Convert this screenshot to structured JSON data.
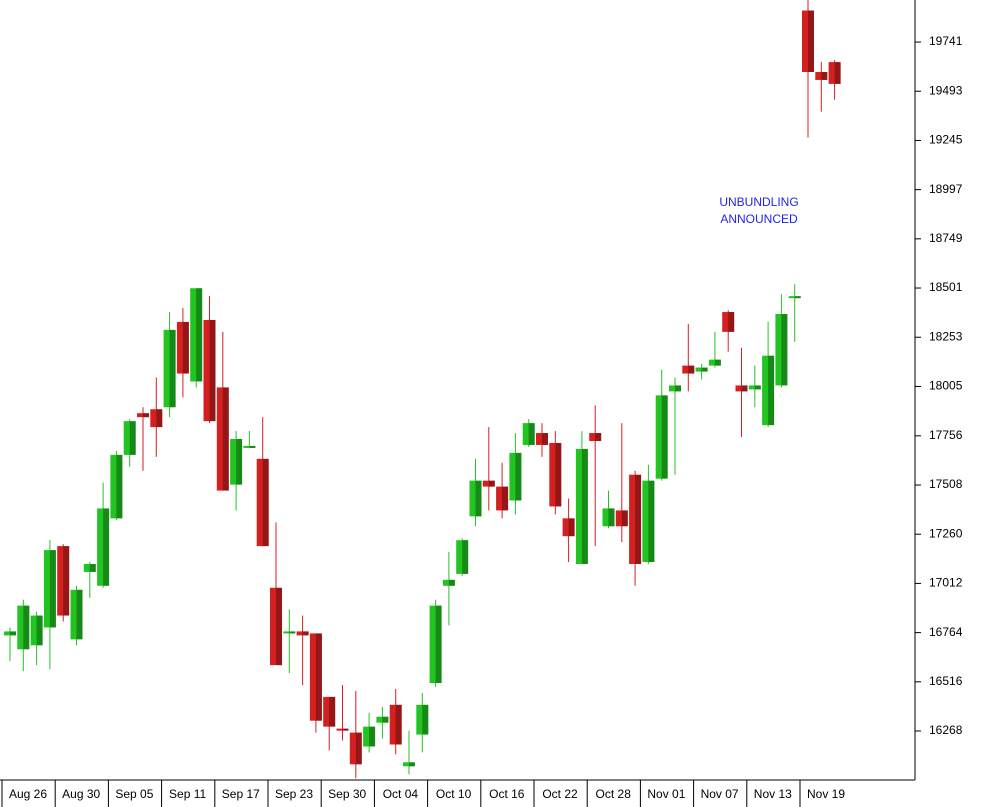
{
  "chart_data": {
    "type": "candlestick",
    "x": [
      null,
      "Aug 26",
      null,
      null,
      null,
      "Aug 30",
      null,
      null,
      null,
      "Sep 05",
      null,
      null,
      null,
      "Sep 11",
      null,
      null,
      null,
      "Sep 17",
      null,
      null,
      null,
      "Sep 23",
      null,
      null,
      null,
      "Sep 30",
      null,
      null,
      null,
      "Oct 04",
      null,
      null,
      null,
      "Oct 10",
      null,
      null,
      null,
      "Oct 16",
      null,
      null,
      null,
      "Oct 22",
      null,
      null,
      null,
      "Oct 28",
      null,
      null,
      null,
      "Nov 01",
      null,
      null,
      null,
      "Nov 07",
      null,
      null,
      null,
      "Nov 13",
      null,
      null,
      null,
      "Nov 19",
      null
    ],
    "open": [
      16750,
      16680,
      16700,
      16790,
      17200,
      16730,
      17070,
      17000,
      17340,
      17660,
      17870,
      17890,
      17900,
      18330,
      18030,
      18340,
      18000,
      17510,
      17700,
      17640,
      16990,
      16760,
      16770,
      16760,
      16440,
      16280,
      16260,
      16190,
      16310,
      16400,
      16090,
      16250,
      16510,
      17000,
      17060,
      17350,
      17530,
      17500,
      17430,
      17710,
      17770,
      17720,
      17340,
      17110,
      17770,
      17300,
      17380,
      17560,
      17120,
      17540,
      17980,
      18110,
      18080,
      18110,
      18380,
      18010,
      17990,
      17810,
      18010,
      18450,
      19900,
      19590,
      19640
    ],
    "high": [
      16790,
      16930,
      16870,
      17230,
      17210,
      17000,
      17120,
      17520,
      17680,
      17840,
      17900,
      18050,
      18380,
      18400,
      18500,
      18460,
      18280,
      17780,
      17780,
      17850,
      17320,
      16880,
      16850,
      16760,
      16440,
      16500,
      16470,
      16360,
      16390,
      16480,
      16270,
      16460,
      16930,
      17170,
      17240,
      17640,
      17800,
      17620,
      17770,
      17840,
      17820,
      17780,
      17440,
      17780,
      17910,
      17480,
      17820,
      17580,
      17610,
      18090,
      18050,
      18320,
      18120,
      18280,
      18390,
      18200,
      18110,
      18330,
      18470,
      18520,
      19980,
      19640,
      19650
    ],
    "low": [
      16620,
      16570,
      16600,
      16580,
      16820,
      16700,
      16940,
      16990,
      17330,
      17600,
      17580,
      17650,
      17850,
      17950,
      18000,
      17820,
      17480,
      17380,
      17700,
      17200,
      16600,
      16560,
      16500,
      16260,
      16170,
      16220,
      16030,
      16160,
      16230,
      16150,
      16050,
      16160,
      16490,
      16800,
      17050,
      17300,
      17380,
      17340,
      17360,
      17700,
      17650,
      17360,
      17120,
      17110,
      17200,
      17290,
      17220,
      17000,
      17110,
      17530,
      17560,
      17980,
      18040,
      18100,
      18180,
      17750,
      17900,
      17800,
      18000,
      18230,
      19260,
      19390,
      19450
    ],
    "close": [
      16770,
      16900,
      16850,
      17180,
      16850,
      16980,
      17110,
      17390,
      17660,
      17830,
      17850,
      17800,
      18290,
      18070,
      18500,
      17830,
      17480,
      17740,
      17705,
      17200,
      16600,
      16770,
      16750,
      16320,
      16290,
      16270,
      16100,
      16290,
      16340,
      16200,
      16110,
      16400,
      16900,
      17030,
      17230,
      17530,
      17500,
      17380,
      17670,
      17820,
      17710,
      17400,
      17250,
      17690,
      17730,
      17390,
      17300,
      17110,
      17530,
      17960,
      18010,
      18070,
      18100,
      18140,
      18280,
      17980,
      18010,
      18160,
      18370,
      18460,
      19590,
      19550,
      19530
    ],
    "up_color": "#22c422",
    "down_color": "#d42020",
    "ylim": [
      16021,
      19953
    ],
    "yticks": [
      16268,
      16516,
      16764,
      17012,
      17260,
      17508,
      17756,
      18005,
      18253,
      18501,
      18749,
      18997,
      19245,
      19493,
      19741
    ],
    "annotation": [
      "UNBUNDLING",
      "ANNOUNCED"
    ]
  }
}
